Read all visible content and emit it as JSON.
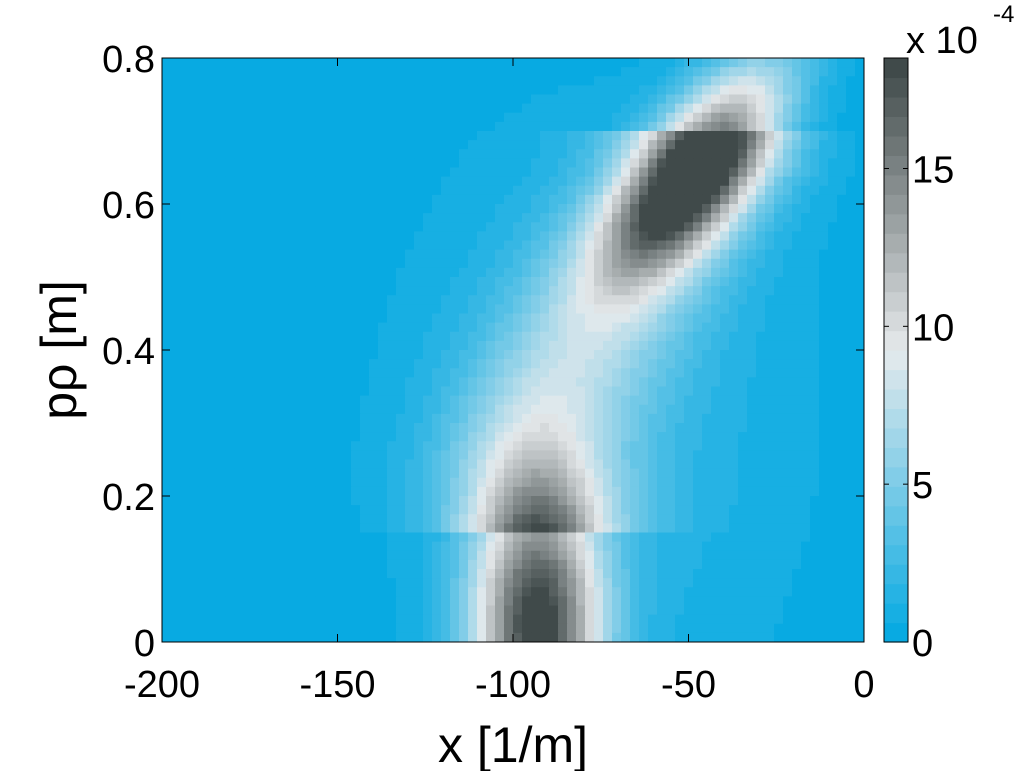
{
  "chart_data": {
    "type": "heatmap",
    "title": "",
    "xlabel": "x [1/m]",
    "ylabel": "pρ [m]",
    "xlim": [
      -200,
      0
    ],
    "ylim": [
      0,
      0.8
    ],
    "x_ticks": [
      -200,
      -150,
      -100,
      -50,
      0
    ],
    "x_tick_labels": [
      "-200",
      "-150",
      "-100",
      "-50",
      "0"
    ],
    "y_ticks": [
      0,
      0.2,
      0.4,
      0.6,
      0.8
    ],
    "y_tick_labels": [
      "0",
      "0.2",
      "0.4",
      "0.6",
      "0.8"
    ],
    "grid": false,
    "colorbar": {
      "range": [
        0,
        18.5
      ],
      "ticks": [
        0,
        5,
        10,
        15
      ],
      "tick_labels": [
        "0",
        "5",
        "10",
        "15"
      ],
      "multiplier_label": "x 10",
      "exponent_label": "-4",
      "levels": 30,
      "colors": [
        "#00a8e2",
        "#e6eaec",
        "#3a4444"
      ]
    },
    "peaks": [
      {
        "x": -93,
        "y": 0.02,
        "value": 18.0,
        "description_units": "x 10^-4"
      },
      {
        "x": -48,
        "y": 0.645,
        "value": 17.5,
        "description_units": "x 10^-4"
      }
    ]
  }
}
